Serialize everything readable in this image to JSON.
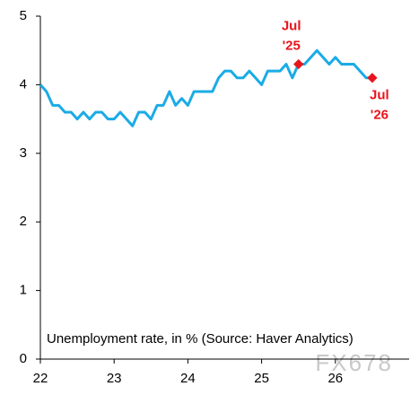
{
  "chart_data": {
    "type": "line",
    "note": "Unemployment rate, in % (Source: Haver Analytics)",
    "watermark": "FX678",
    "x": [
      22,
      22.083,
      22.167,
      22.25,
      22.333,
      22.417,
      22.5,
      22.583,
      22.667,
      22.75,
      22.833,
      22.917,
      23,
      23.083,
      23.167,
      23.25,
      23.333,
      23.417,
      23.5,
      23.583,
      23.667,
      23.75,
      23.833,
      23.917,
      24,
      24.083,
      24.167,
      24.25,
      24.333,
      24.417,
      24.5,
      24.583,
      24.667,
      24.75,
      24.833,
      24.917,
      25,
      25.083,
      25.167,
      25.25,
      25.333,
      25.417,
      25.5,
      25.583,
      25.667,
      25.75,
      25.833,
      25.917,
      26,
      26.083,
      26.167,
      26.25,
      26.333,
      26.417,
      26.5
    ],
    "series": [
      {
        "color": "#1aabe6",
        "values": [
          4.0,
          3.9,
          3.7,
          3.7,
          3.6,
          3.6,
          3.5,
          3.6,
          3.5,
          3.6,
          3.6,
          3.5,
          3.5,
          3.6,
          3.5,
          3.4,
          3.6,
          3.6,
          3.5,
          3.7,
          3.7,
          3.9,
          3.7,
          3.8,
          3.7,
          3.9,
          3.9,
          3.9,
          3.9,
          4.1,
          4.2,
          4.2,
          4.1,
          4.1,
          4.2,
          4.1,
          4.0,
          4.2,
          4.2,
          4.2,
          4.3,
          4.1,
          4.3,
          4.3,
          4.4,
          4.5,
          4.4,
          4.3,
          4.4,
          4.3,
          4.3,
          4.3,
          4.2,
          4.1,
          4.1
        ]
      }
    ],
    "annotations": [
      {
        "lines": [
          "Jul",
          "'25"
        ],
        "x": 25.5,
        "y": 4.3,
        "color": "#e8141c"
      },
      {
        "lines": [
          "Jul",
          "'26"
        ],
        "x": 26.5,
        "y": 4.1,
        "color": "#e8141c"
      }
    ],
    "xlim": [
      22,
      27
    ],
    "xticks": [
      22,
      23,
      24,
      25,
      26
    ],
    "ylim": [
      0,
      5
    ],
    "yticks": [
      0,
      1,
      2,
      3,
      4,
      5
    ]
  }
}
